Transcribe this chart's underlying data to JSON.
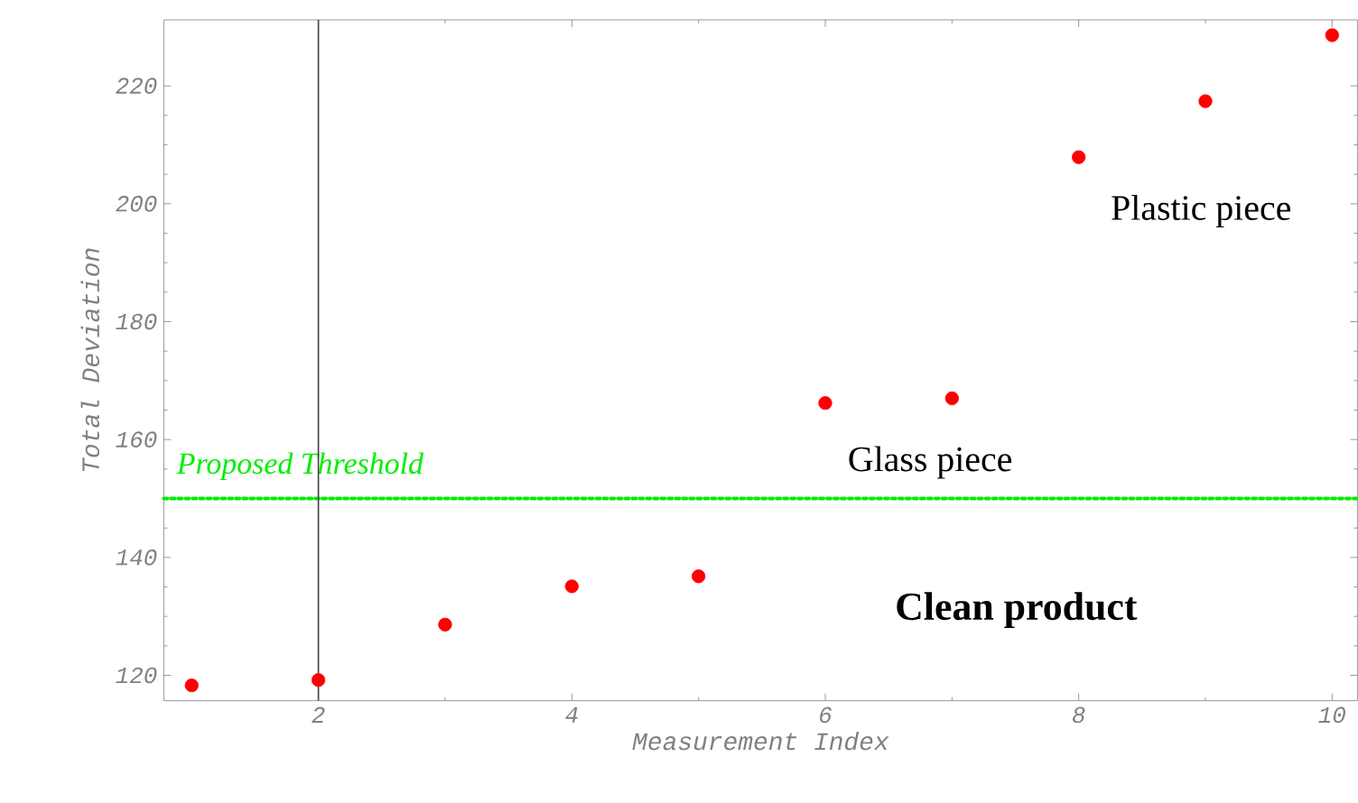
{
  "chart_data": {
    "type": "scatter",
    "xlabel": "Measurement Index",
    "ylabel": "Total Deviation",
    "x": [
      1,
      2,
      3,
      4,
      5,
      6,
      7,
      8,
      9,
      10
    ],
    "values": [
      118.3,
      119.2,
      128.6,
      135.1,
      136.8,
      166.2,
      167.0,
      207.9,
      217.4,
      228.6
    ],
    "color": "#ff0000",
    "grid": false,
    "xlim": [
      0.78,
      10.2
    ],
    "ylim": [
      115.7,
      231.2
    ],
    "xticks": [
      2,
      4,
      6,
      8,
      10
    ],
    "yticks": [
      120,
      140,
      160,
      180,
      200,
      220
    ],
    "ref_lines": [
      {
        "axis": "y",
        "value": 150,
        "label": "Proposed Threshold",
        "color": "#00ee00",
        "line_style": "dotted"
      },
      {
        "axis": "x",
        "value": 2,
        "color": "#404040",
        "line_style": "solid"
      }
    ],
    "annotations": [
      "Glass piece",
      "Plastic piece",
      "Clean product"
    ]
  }
}
